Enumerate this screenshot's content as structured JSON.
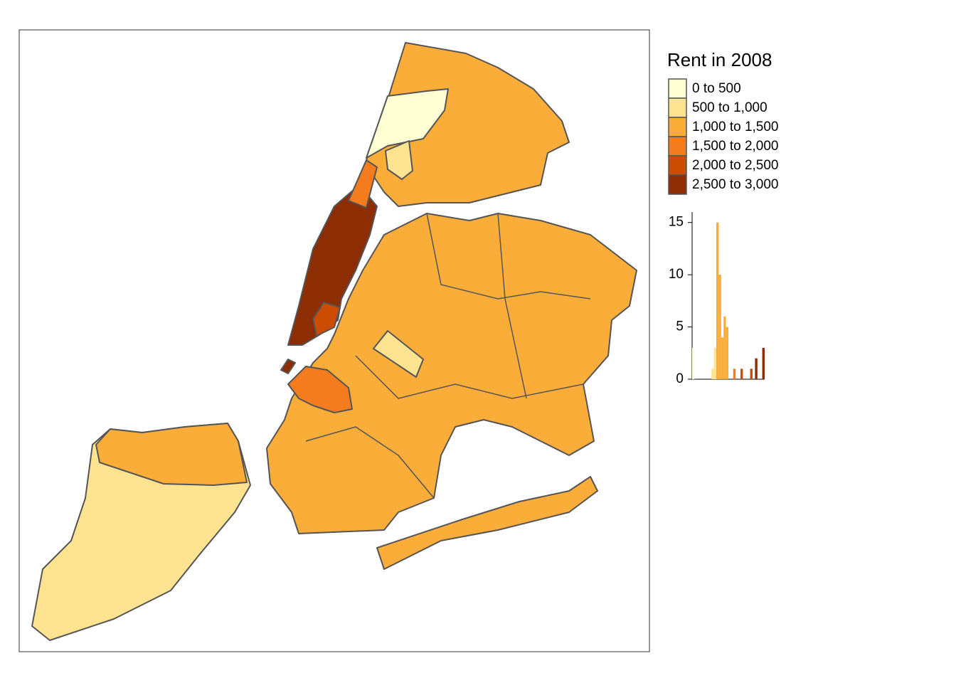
{
  "chart_data": {
    "type": "histogram",
    "legend": {
      "title": "Rent in 2008",
      "labels": [
        "0 to 500",
        "500 to 1,000",
        "1,000 to 1,500",
        "1,500 to 2,000",
        "2,000 to 2,500",
        "2,500 to 3,000"
      ],
      "colors": [
        "#ffffd4",
        "#fee391",
        "#fbad3a",
        "#f47c1e",
        "#cc4c02",
        "#8c2d04"
      ],
      "breaks": [
        0,
        500,
        1000,
        1500,
        2000,
        2500,
        3000
      ]
    },
    "bins": [
      0,
      100,
      200,
      300,
      400,
      500,
      600,
      700,
      800,
      900,
      1000,
      1100,
      1200,
      1300,
      1400,
      1500,
      1600,
      1700,
      1800,
      1900,
      2000,
      2100,
      2200,
      2300,
      2400,
      2500,
      2600,
      2700,
      2800,
      2900,
      3000
    ],
    "values": [
      3,
      0,
      0,
      0,
      0,
      0,
      0,
      0,
      1,
      3,
      15,
      10,
      4,
      6,
      5,
      0,
      0,
      1,
      0,
      0,
      1,
      0,
      0,
      0,
      1,
      0,
      2,
      0,
      0,
      3
    ],
    "xlim": [
      0,
      3000
    ],
    "ylim": [
      0,
      16
    ],
    "yticks": [
      0,
      5,
      10,
      15
    ]
  }
}
